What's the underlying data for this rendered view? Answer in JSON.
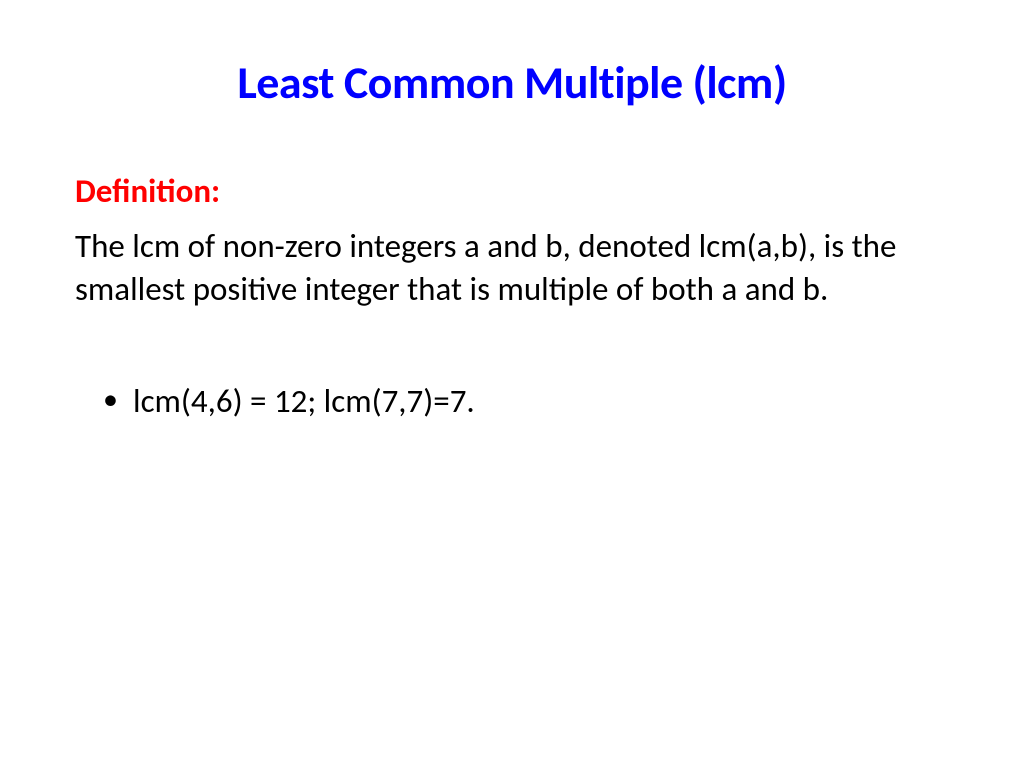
{
  "slide": {
    "title": "Least Common Multiple (lcm)",
    "definition_label": "Definition:",
    "definition_text": "The lcm of non-zero integers a and b, denoted lcm(a,b), is the smallest positive integer that is multiple of both a and b.",
    "example": "lcm(4,6) = 12; lcm(7,7)=7."
  },
  "colors": {
    "title": "#0000ff",
    "definition_label": "#ff0000",
    "body_text": "#000000",
    "background": "#ffffff"
  },
  "typography": {
    "title_fontsize": 46,
    "body_fontsize": 33,
    "title_weight": "bold",
    "definition_label_weight": "bold",
    "font_family": "Calibri"
  }
}
